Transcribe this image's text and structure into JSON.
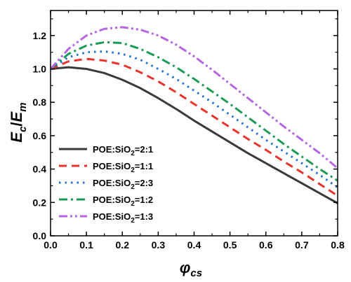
{
  "chart_data": {
    "type": "line",
    "title": "",
    "xlabel": {
      "main": "φ",
      "sub": "cs"
    },
    "ylabel": {
      "main": "E",
      "sub1": "c",
      "slash": "/",
      "main2": "E",
      "sub2": "m"
    },
    "xlim": [
      0.0,
      0.8
    ],
    "ylim": [
      0.0,
      1.35
    ],
    "xticks": [
      "0.0",
      "0.1",
      "0.2",
      "0.3",
      "0.4",
      "0.5",
      "0.6",
      "0.7",
      "0.8"
    ],
    "yticks": [
      "0.0",
      "0.2",
      "0.4",
      "0.6",
      "0.8",
      "1.0",
      "1.2"
    ],
    "grid": false,
    "legend_position": "bottom-left",
    "x": [
      0.0,
      0.05,
      0.1,
      0.15,
      0.2,
      0.25,
      0.3,
      0.35,
      0.4,
      0.45,
      0.5,
      0.55,
      0.6,
      0.65,
      0.7,
      0.75,
      0.8
    ],
    "series": [
      {
        "label_pre": "POE:SiO",
        "label_sub": "2",
        "label_post": "=2:1",
        "color": "#3a3a3a",
        "dash": "solid",
        "values": [
          1.0,
          1.01,
          1.0,
          0.975,
          0.935,
          0.885,
          0.825,
          0.76,
          0.69,
          0.625,
          0.56,
          0.495,
          0.435,
          0.375,
          0.315,
          0.255,
          0.195
        ]
      },
      {
        "label_pre": "POE:SiO",
        "label_sub": "2",
        "label_post": "=1:1",
        "color": "#e8332b",
        "dash": "dash",
        "values": [
          1.0,
          1.045,
          1.06,
          1.05,
          1.025,
          0.98,
          0.925,
          0.86,
          0.79,
          0.72,
          0.65,
          0.58,
          0.515,
          0.445,
          0.38,
          0.31,
          0.24
        ]
      },
      {
        "label_pre": "POE:SiO",
        "label_sub": "2",
        "label_post": "=2:3",
        "color": "#1f6fd6",
        "dash": "dot",
        "values": [
          1.0,
          1.07,
          1.1,
          1.105,
          1.09,
          1.055,
          1.0,
          0.94,
          0.87,
          0.8,
          0.725,
          0.65,
          0.575,
          0.505,
          0.435,
          0.365,
          0.29
        ]
      },
      {
        "label_pre": "POE:SiO",
        "label_sub": "2",
        "label_post": "=1:2",
        "color": "#1a9a52",
        "dash": "dashdot",
        "values": [
          1.0,
          1.09,
          1.14,
          1.16,
          1.155,
          1.12,
          1.07,
          1.01,
          0.94,
          0.865,
          0.79,
          0.71,
          0.63,
          0.55,
          0.475,
          0.4,
          0.33
        ]
      },
      {
        "label_pre": "POE:SiO",
        "label_sub": "2",
        "label_post": "=1:3",
        "color": "#b566e0",
        "dash": "dashdotdot",
        "values": [
          1.0,
          1.12,
          1.2,
          1.24,
          1.25,
          1.235,
          1.2,
          1.145,
          1.075,
          0.995,
          0.91,
          0.825,
          0.74,
          0.655,
          0.575,
          0.495,
          0.405
        ]
      }
    ]
  }
}
